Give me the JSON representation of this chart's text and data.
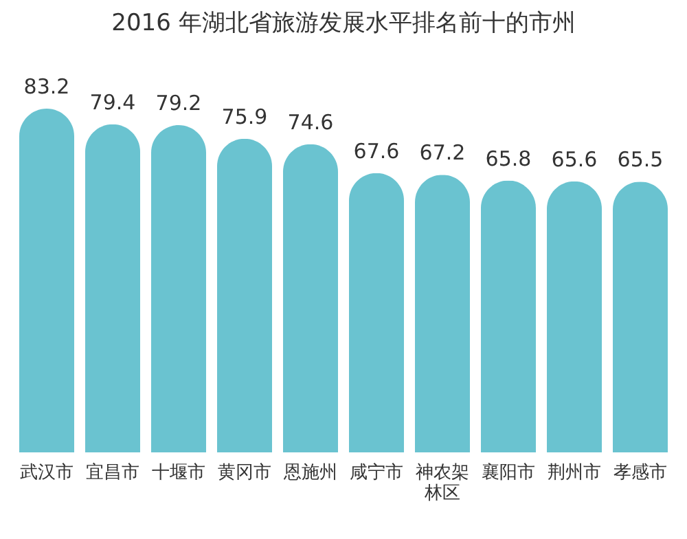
{
  "chart_data": {
    "type": "bar",
    "title": "2016 年湖北省旅游发展水平排名前十的市州",
    "categories": [
      "武汉市",
      "宜昌市",
      "十堰市",
      "黄冈市",
      "恩施州",
      "咸宁市",
      "神农架林区",
      "襄阳市",
      "荆州市",
      "孝感市"
    ],
    "values": [
      83.2,
      79.4,
      79.2,
      75.9,
      74.6,
      67.6,
      67.2,
      65.8,
      65.6,
      65.5
    ],
    "color": "#6ac3d0",
    "data_labels": true
  }
}
